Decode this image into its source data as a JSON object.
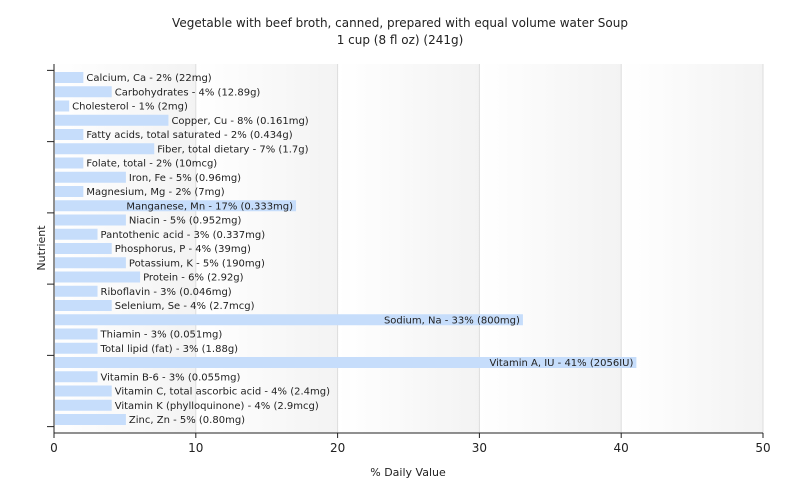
{
  "chart_data": {
    "type": "bar",
    "orientation": "horizontal",
    "title": "Vegetable with beef broth, canned, prepared with equal volume water Soup",
    "subtitle": "1 cup (8 fl oz) (241g)",
    "xlabel": "% Daily Value",
    "ylabel": "Nutrient",
    "xlim": [
      0,
      50
    ],
    "xticks": [
      "0",
      "10",
      "20",
      "30",
      "40",
      "50"
    ],
    "grid": true,
    "bar_color": "#c6ddfb",
    "categories": [
      "Calcium, Ca",
      "Carbohydrates",
      "Cholesterol",
      "Copper, Cu",
      "Fatty acids, total saturated",
      "Fiber, total dietary",
      "Folate, total",
      "Iron, Fe",
      "Magnesium, Mg",
      "Manganese, Mn",
      "Niacin",
      "Pantothenic acid",
      "Phosphorus, P",
      "Potassium, K",
      "Protein",
      "Riboflavin",
      "Selenium, Se",
      "Sodium, Na",
      "Thiamin",
      "Total lipid (fat)",
      "Vitamin A, IU",
      "Vitamin B-6",
      "Vitamin C, total ascorbic acid",
      "Vitamin K (phylloquinone)",
      "Zinc, Zn"
    ],
    "values": [
      2,
      4,
      1,
      8,
      2,
      7,
      2,
      5,
      2,
      17,
      5,
      3,
      4,
      5,
      6,
      3,
      4,
      33,
      3,
      3,
      41,
      3,
      4,
      4,
      5
    ],
    "labels": [
      "Calcium, Ca - 2% (22mg)",
      "Carbohydrates - 4% (12.89g)",
      "Cholesterol - 1% (2mg)",
      "Copper, Cu - 8% (0.161mg)",
      "Fatty acids, total saturated - 2% (0.434g)",
      "Fiber, total dietary - 7% (1.7g)",
      "Folate, total - 2% (10mcg)",
      "Iron, Fe - 5% (0.96mg)",
      "Magnesium, Mg - 2% (7mg)",
      "Manganese, Mn - 17% (0.333mg)",
      "Niacin - 5% (0.952mg)",
      "Pantothenic acid - 3% (0.337mg)",
      "Phosphorus, P - 4% (39mg)",
      "Potassium, K - 5% (190mg)",
      "Protein - 6% (2.92g)",
      "Riboflavin - 3% (0.046mg)",
      "Selenium, Se - 4% (2.7mcg)",
      "Sodium, Na - 33% (800mg)",
      "Thiamin - 3% (0.051mg)",
      "Total lipid (fat) - 3% (1.88g)",
      "Vitamin A, IU - 41% (2056IU)",
      "Vitamin B-6 - 3% (0.055mg)",
      "Vitamin C, total ascorbic acid - 4% (2.4mg)",
      "Vitamin K (phylloquinone) - 4% (2.9mcg)",
      "Zinc, Zn - 5% (0.80mg)"
    ]
  }
}
